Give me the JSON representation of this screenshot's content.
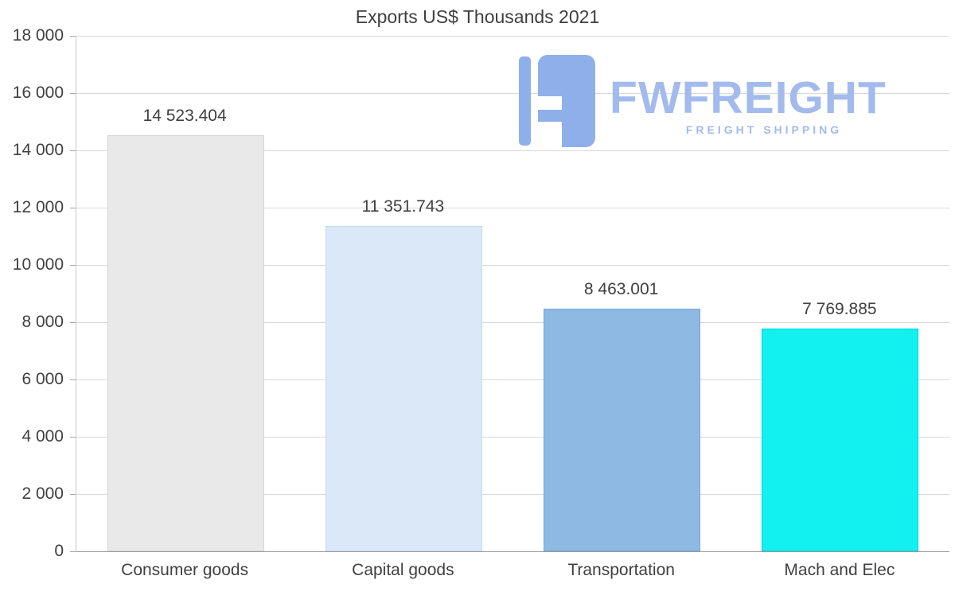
{
  "chart_data": {
    "type": "bar",
    "title": "Exports US$ Thousands 2021",
    "categories": [
      "Consumer goods",
      "Capital goods",
      "Transportation",
      "Mach and Elec"
    ],
    "values": [
      14523.404,
      11351.743,
      8463.001,
      7769.885
    ],
    "value_labels": [
      "14 523.404",
      "11 351.743",
      "8 463.001",
      "7 769.885"
    ],
    "bar_colors": [
      "#e9e9e9",
      "#dbe8f8",
      "#8db9e2",
      "#12f0f0"
    ],
    "bar_border_colors": [
      "#d6d6d6",
      "#c3d9f1",
      "#79a9d6",
      "#00d5d5"
    ],
    "xlabel": "",
    "ylabel": "",
    "ylim": [
      0,
      18000
    ],
    "ytick_step": 2000,
    "ytick_labels": [
      "0",
      "2 000",
      "4 000",
      "6 000",
      "8 000",
      "10 000",
      "12 000",
      "14 000",
      "16 000",
      "18 000"
    ],
    "grid": "horizontal",
    "legend": "none"
  },
  "watermark": {
    "brand": "FWFREIGHT",
    "tagline": "FREIGHT SHIPPING",
    "color": "#a3baed",
    "icon_color": "#8fafea"
  },
  "colors": {
    "background": "#ffffff",
    "text": "#404040",
    "gridline": "#d9d9d9",
    "axis": "#9a9a9a"
  }
}
